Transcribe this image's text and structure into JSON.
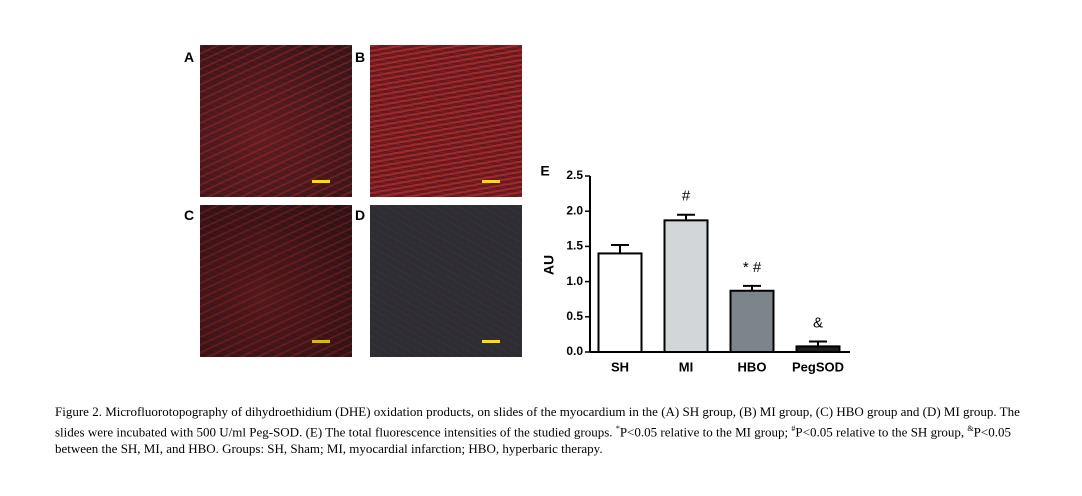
{
  "panels": [
    "A",
    "B",
    "C",
    "D"
  ],
  "chart_data": {
    "type": "bar",
    "panel": "E",
    "ylabel": "AU",
    "categories": [
      "SH",
      "MI",
      "HBO",
      "PegSOD"
    ],
    "values": [
      1.4,
      1.87,
      0.87,
      0.08
    ],
    "errors": [
      0.12,
      0.08,
      0.07,
      0.07
    ],
    "colors": [
      "#ffffff",
      "#d3d6d9",
      "#7b858b",
      "#1e1e1e"
    ],
    "annotations": [
      null,
      "#",
      "* #",
      "&"
    ],
    "ylim": [
      0,
      2.5
    ],
    "yticks": [
      {
        "value": 0,
        "label": "0.0"
      },
      0.5,
      {
        "value": 1,
        "label": "1.0"
      },
      1.5,
      {
        "value": 2,
        "label": "2.0"
      },
      2.5
    ]
  },
  "caption": [
    "Figure 2. Microfluorotopography of dihydroethidium (DHE) oxidation products, on slides of the myocardium in the (A) SH group, (B) MI group, (C) HBO group and (D) MI group. The slides were incubated with 500 U/ml Peg-SOD. (E) The total fluorescence intensities of the studied groups. ",
    "*",
    "P<0.05 relative to the MI group; ",
    "#",
    "P<0.05 relative to the SH group, ",
    "&",
    "P<0.05 between the SH, MI, and HBO. Groups: SH, Sham; MI, myocardial infarction; HBO, hyperbaric therapy."
  ]
}
